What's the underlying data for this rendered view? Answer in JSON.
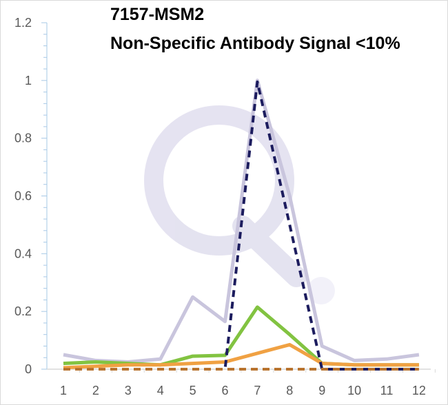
{
  "chart_data": {
    "type": "line",
    "title": "7157-MSM2",
    "subtitle": "Non-Specific Antibody Signal <10%",
    "xlabel": "",
    "ylabel": "",
    "categories": [
      "1",
      "2",
      "3",
      "4",
      "5",
      "6",
      "7",
      "8",
      "9",
      "10",
      "11",
      "12"
    ],
    "ylim": [
      0,
      1.2
    ],
    "yticks": [
      "0",
      "0.2",
      "0.4",
      "0.6",
      "0.8",
      "1",
      "1.2"
    ],
    "grid": false,
    "legend": "none",
    "series": [
      {
        "color": "#c9c5dd",
        "dash": "solid",
        "values": [
          0.05,
          0.03,
          0.025,
          0.035,
          0.25,
          0.165,
          1.0,
          0.6,
          0.08,
          0.03,
          0.035,
          0.05
        ]
      },
      {
        "color": "#82c341",
        "dash": "solid",
        "values": [
          0.02,
          0.025,
          0.02,
          0.015,
          0.045,
          0.048,
          0.215,
          0.12,
          0.02,
          0.015,
          0.015,
          0.015
        ]
      },
      {
        "color": "#f0a143",
        "dash": "solid",
        "values": [
          0.005,
          0.01,
          0.015,
          0.015,
          0.02,
          0.025,
          0.055,
          0.085,
          0.02,
          0.015,
          0.015,
          0.015
        ]
      },
      {
        "color": "#1c1c5e",
        "dash": "dashed",
        "values": [
          0,
          0,
          0,
          0,
          0,
          0,
          0.995,
          0.5,
          0,
          0,
          0,
          0
        ]
      },
      {
        "color": "#b8732e",
        "dash": "dashed",
        "values": [
          0,
          0,
          0,
          0,
          0,
          0,
          0,
          0,
          0,
          0,
          0,
          0
        ]
      }
    ]
  }
}
